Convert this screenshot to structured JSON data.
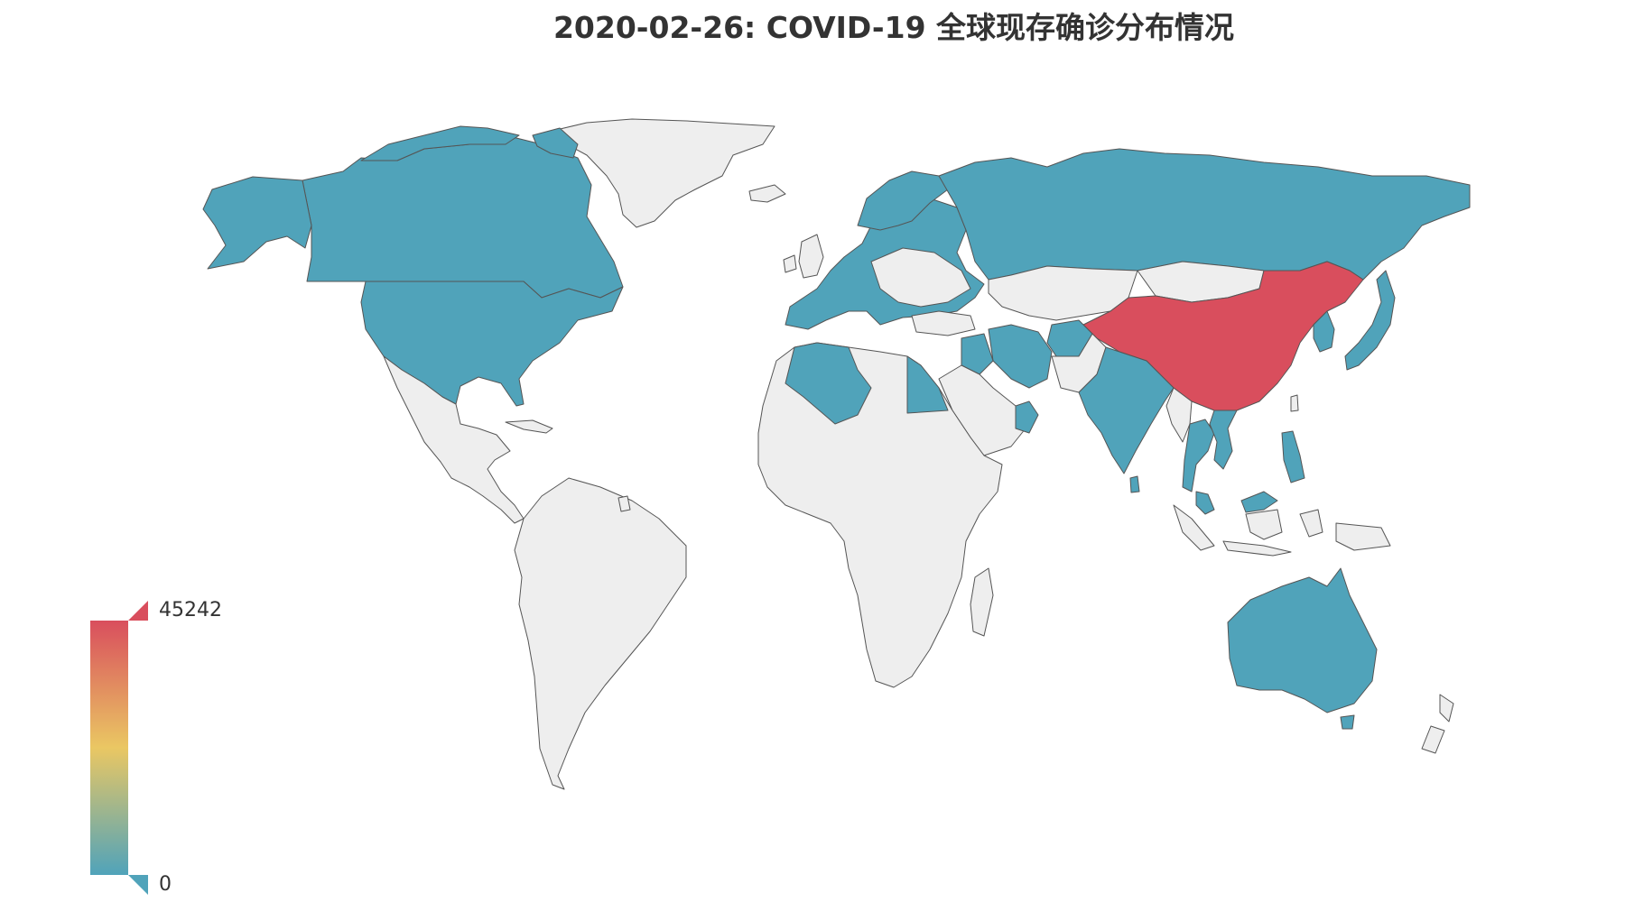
{
  "title": "2020-02-26: COVID-19 全球现存确诊分布情况",
  "colors": {
    "no_data": "#eeeeee",
    "low": "#50a3ba",
    "mid": "#eac763",
    "high": "#d94e5d",
    "border": "#555555"
  },
  "visual_map": {
    "min": 0,
    "max": 45242,
    "min_label": "0",
    "max_label": "45242",
    "placement": "bottom-left",
    "orientation": "vertical"
  },
  "legend_levels": {
    "China": 1.0,
    "others_with_cases": 0.0,
    "no_data": null
  },
  "regions": [
    {
      "name": "China",
      "level": "high"
    },
    {
      "name": "Russia",
      "level": "low"
    },
    {
      "name": "Canada",
      "level": "low"
    },
    {
      "name": "United States",
      "level": "low"
    },
    {
      "name": "Europe",
      "level": "low"
    },
    {
      "name": "India",
      "level": "low"
    },
    {
      "name": "Japan",
      "level": "low"
    },
    {
      "name": "South Korea",
      "level": "low"
    },
    {
      "name": "Australia",
      "level": "low"
    },
    {
      "name": "Algeria",
      "level": "low"
    },
    {
      "name": "Egypt",
      "level": "low"
    },
    {
      "name": "Iran",
      "level": "low"
    },
    {
      "name": "Iraq",
      "level": "low"
    },
    {
      "name": "Afghanistan",
      "level": "low"
    },
    {
      "name": "Oman",
      "level": "low"
    },
    {
      "name": "Thailand",
      "level": "low"
    },
    {
      "name": "Vietnam",
      "level": "low"
    },
    {
      "name": "Philippines",
      "level": "low"
    },
    {
      "name": "Malaysia",
      "level": "low"
    },
    {
      "name": "Nepal",
      "level": "low"
    },
    {
      "name": "Sri Lanka",
      "level": "low"
    },
    {
      "name": "Cambodia",
      "level": "low"
    },
    {
      "name": "Greenland",
      "level": "no_data"
    },
    {
      "name": "South America",
      "level": "no_data"
    },
    {
      "name": "Africa",
      "level": "no_data"
    },
    {
      "name": "Mexico",
      "level": "no_data"
    },
    {
      "name": "Kazakhstan",
      "level": "no_data"
    },
    {
      "name": "Mongolia",
      "level": "no_data"
    },
    {
      "name": "Saudi Arabia",
      "level": "no_data"
    },
    {
      "name": "Indonesia",
      "level": "no_data"
    },
    {
      "name": "New Zealand",
      "level": "no_data"
    }
  ]
}
